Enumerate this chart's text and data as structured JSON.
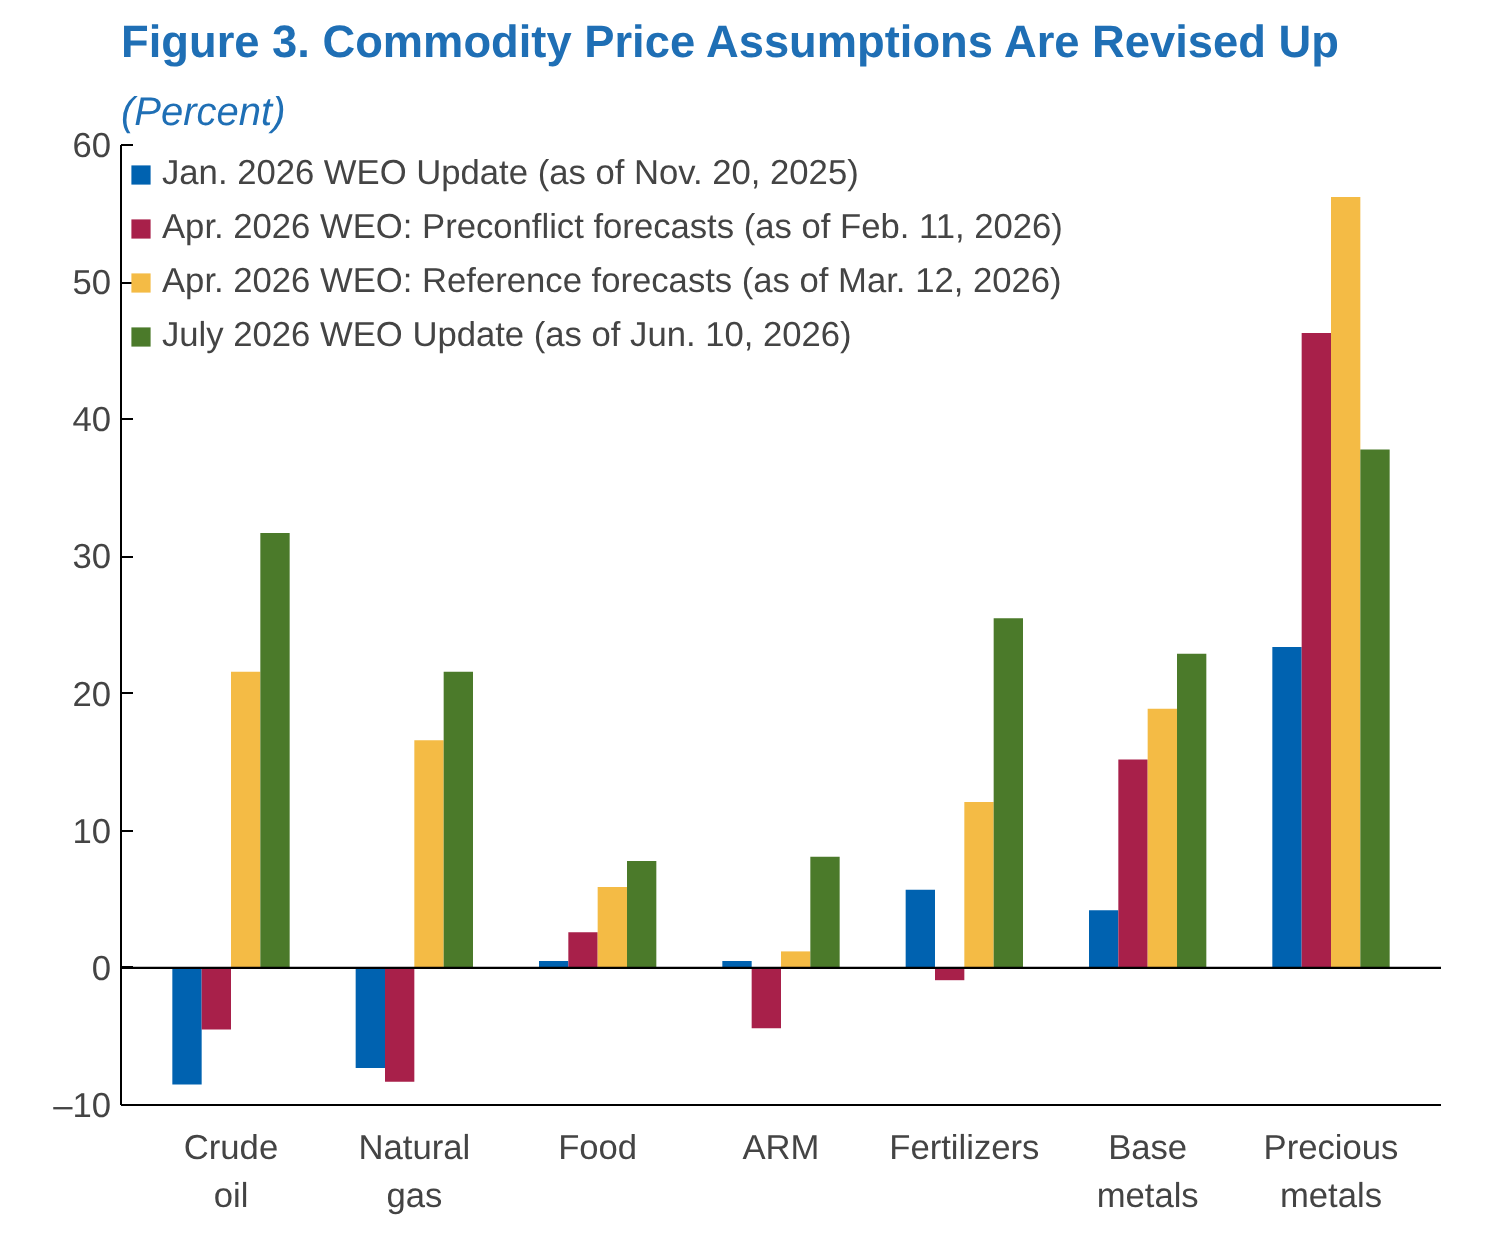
{
  "chart_data": {
    "type": "bar",
    "title": "Figure 3.  Commodity Price Assumptions Are Revised Up",
    "subtitle": "(Percent)",
    "categories": [
      "Crude oil",
      "Natural gas",
      "Food",
      "ARM",
      "Fertilizers",
      "Base metals",
      "Precious metals"
    ],
    "series": [
      {
        "name": "Jan. 2026 WEO Update (as of Nov. 20, 2025)",
        "color": "#0062b0",
        "values": [
          -8.5,
          -7.3,
          0.5,
          0.5,
          5.7,
          4.2,
          23.4
        ]
      },
      {
        "name": "Apr. 2026 WEO: Preconflict forecasts (as of Feb. 11, 2026)",
        "color": "#a8204a",
        "values": [
          -4.5,
          -8.3,
          2.6,
          -4.4,
          -0.9,
          15.2,
          46.3
        ]
      },
      {
        "name": "Apr. 2026 WEO: Reference forecasts (as of Mar. 12, 2026)",
        "color": "#f4bb45",
        "values": [
          21.6,
          16.6,
          5.9,
          1.2,
          12.1,
          18.9,
          56.2
        ]
      },
      {
        "name": "July 2026 WEO Update (as of Jun. 10, 2026)",
        "color": "#4b7a2a",
        "values": [
          31.7,
          21.6,
          7.8,
          8.1,
          25.5,
          22.9,
          37.8
        ]
      }
    ],
    "ylim": [
      -10,
      60
    ],
    "yticks": [
      {
        "value": -10,
        "label": "–10"
      },
      0,
      10,
      20,
      30,
      40,
      50,
      60
    ],
    "ref_lines": [
      {
        "axis": "y",
        "value": 0
      }
    ],
    "grid": false,
    "legend": "top left"
  }
}
